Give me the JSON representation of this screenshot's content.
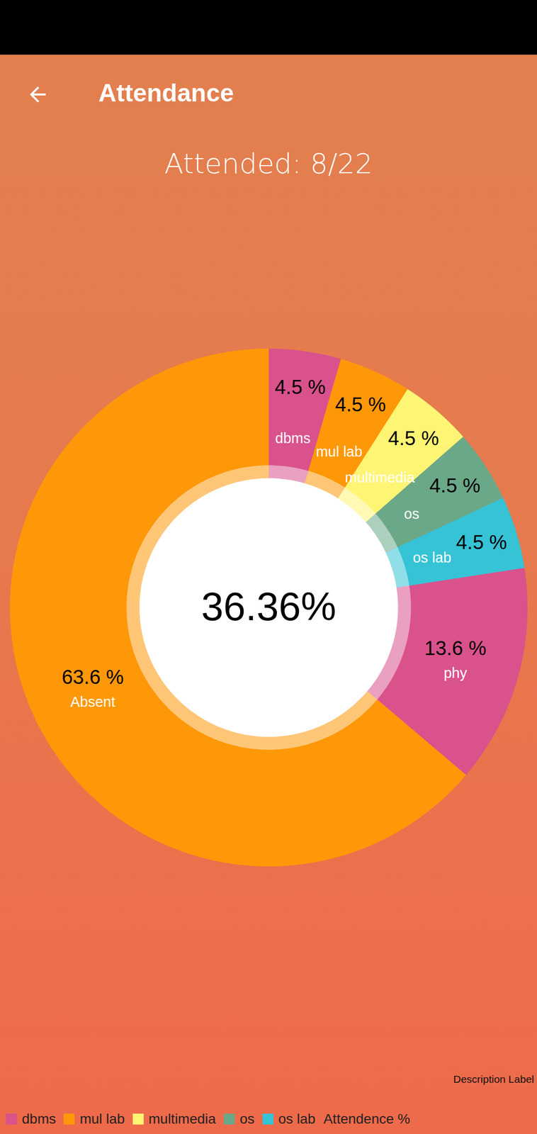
{
  "app_bar": {
    "title": "Attendance"
  },
  "chart_data": {
    "type": "donut",
    "title": "Attended: 8/22",
    "center_label": "36.36%",
    "categories": [
      "dbms",
      "mul lab",
      "multimedia",
      "os",
      "os lab",
      "phy",
      "Absent"
    ],
    "values": [
      4.5,
      4.5,
      4.5,
      4.5,
      4.5,
      13.6,
      63.6
    ],
    "value_labels": [
      "4.5 %",
      "4.5 %",
      "4.5 %",
      "4.5 %",
      "4.5 %",
      "13.6 %",
      "63.6 %"
    ],
    "colors": [
      "#D9528C",
      "#FF9808",
      "#FFF575",
      "#6BA888",
      "#36C3D6",
      "#D9528C",
      "#FF9808"
    ],
    "data_labels": true,
    "legend": "bottom left",
    "legend_entries": [
      "dbms",
      "mul lab",
      "multimedia",
      "os",
      "os lab"
    ],
    "legend_label": "Attendence %",
    "description": "Description Label"
  }
}
